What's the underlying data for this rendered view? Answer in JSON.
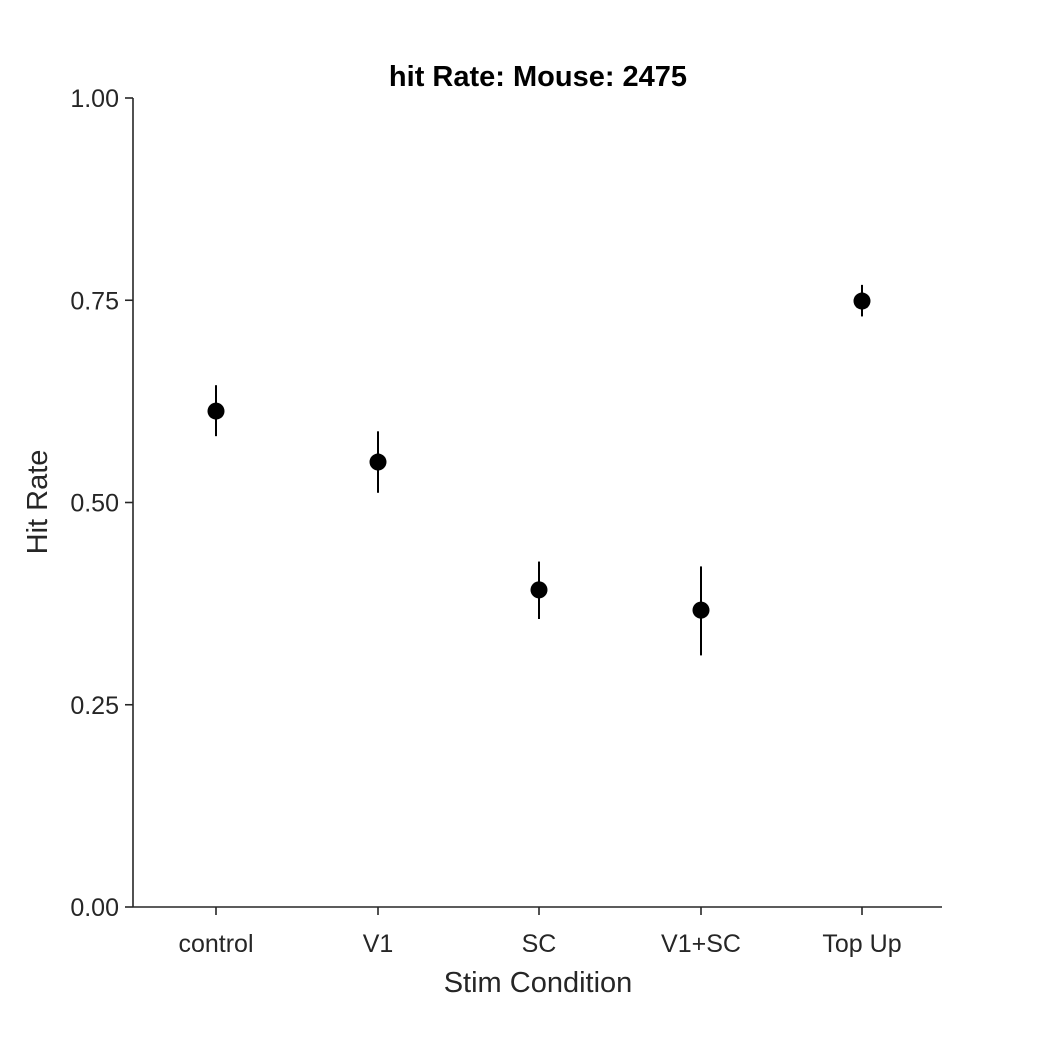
{
  "chart_data": {
    "type": "scatter",
    "title": "hit Rate: Mouse: 2475",
    "xlabel": "Stim Condition",
    "ylabel": "Hit Rate",
    "categories": [
      "control",
      "V1",
      "SC",
      "V1+SC",
      "Top Up"
    ],
    "ylim": [
      0,
      1
    ],
    "yticks": [
      0,
      0.25,
      0.5,
      0.75,
      1
    ],
    "ytick_labels": [
      "0.00",
      "0.25",
      "0.50",
      "0.75",
      "1.00"
    ],
    "series": [
      {
        "values": [
          0.613,
          0.55,
          0.392,
          0.367,
          0.749
        ],
        "err_low": [
          0.582,
          0.512,
          0.356,
          0.311,
          0.73
        ],
        "err_high": [
          0.645,
          0.588,
          0.427,
          0.421,
          0.769
        ]
      }
    ],
    "grid": false,
    "marker_color": "#000000",
    "axis_color": "#262626"
  }
}
